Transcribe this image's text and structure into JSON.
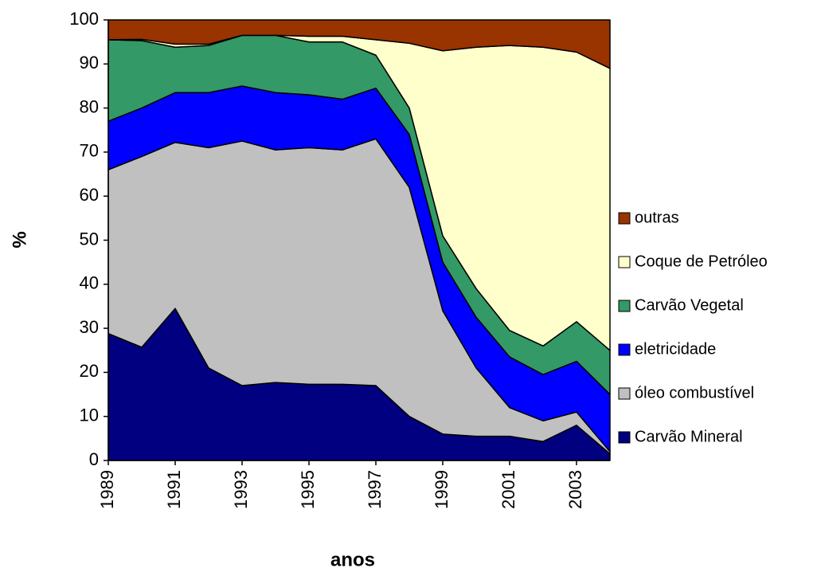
{
  "chart_data": {
    "type": "stacked-area",
    "x": [
      1989,
      1990,
      1991,
      1992,
      1993,
      1994,
      1995,
      1996,
      1997,
      1998,
      1999,
      2000,
      2001,
      2002,
      2003,
      2004
    ],
    "xlim": [
      1989,
      2004
    ],
    "xticks": [
      1989,
      1991,
      1993,
      1995,
      1997,
      1999,
      2001,
      2003
    ],
    "ylim": [
      0,
      100
    ],
    "yticks": [
      0,
      10,
      20,
      30,
      40,
      50,
      60,
      70,
      80,
      90,
      100
    ],
    "x_label": "anos",
    "y_label": "%",
    "legend": "right",
    "series": [
      {
        "name": "Carvão Mineral",
        "color": "#000080",
        "values": [
          28.8,
          25.7,
          34.5,
          21,
          17,
          17.7,
          17.3,
          17.3,
          17,
          10,
          6,
          5.5,
          5.5,
          4.3,
          8,
          1.5
        ]
      },
      {
        "name": "óleo combustível",
        "color": "#c0c0c0",
        "values": [
          37.2,
          43.3,
          37.7,
          50,
          55.5,
          52.8,
          53.7,
          53.2,
          56,
          52,
          28,
          15.5,
          6.5,
          4.7,
          3,
          0.5
        ]
      },
      {
        "name": "eletricidade",
        "color": "#0000ff",
        "values": [
          11,
          11,
          11.3,
          12.5,
          12.5,
          13,
          12,
          11.5,
          11.5,
          12,
          11,
          11.5,
          11.5,
          10.5,
          11.5,
          13
        ]
      },
      {
        "name": "Carvão Vegetal",
        "color": "#339966",
        "values": [
          18.5,
          15.3,
          10.3,
          10.7,
          11.5,
          13,
          12,
          13,
          7.5,
          6,
          6,
          6.5,
          6,
          6.5,
          9,
          10
        ]
      },
      {
        "name": "Coque de Petróleo",
        "color": "#ffffcc",
        "values": [
          0,
          0.3,
          0.7,
          0.3,
          0,
          0,
          1.3,
          1.3,
          3.5,
          14.7,
          42,
          54.8,
          64.7,
          67.8,
          61.2,
          64
        ]
      },
      {
        "name": "outras",
        "color": "#993300",
        "values": [
          4.5,
          4.4,
          5.5,
          5.5,
          3.5,
          3.5,
          3.7,
          3.7,
          4.5,
          5.3,
          7,
          6.2,
          5.8,
          6.2,
          7.3,
          11
        ]
      }
    ]
  }
}
